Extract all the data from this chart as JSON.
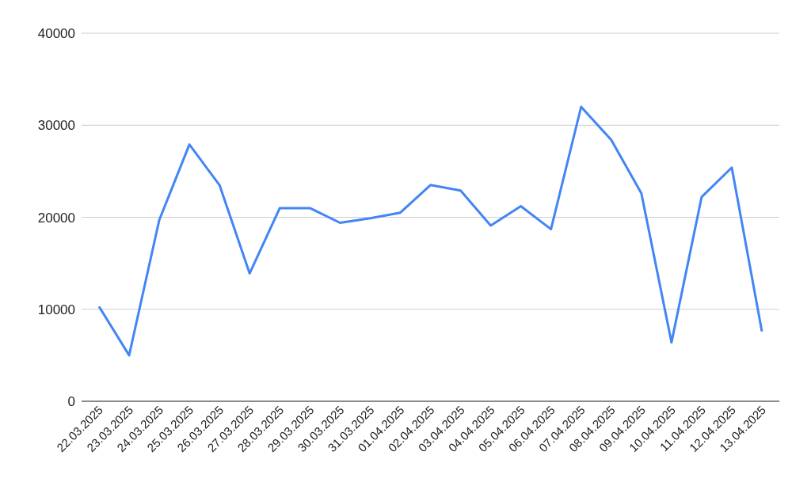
{
  "chart_data": {
    "type": "line",
    "categories": [
      "22.03.2025",
      "23.03.2025",
      "24.03.2025",
      "25.03.2025",
      "26.03.2025",
      "27.03.2025",
      "28.03.2025",
      "29.03.2025",
      "30.03.2025",
      "31.03.2025",
      "01.04.2025",
      "02.04.2025",
      "03.04.2025",
      "04.04.2025",
      "05.04.2025",
      "06.04.2025",
      "07.04.2025",
      "08.04.2025",
      "09.04.2025",
      "10.04.2025",
      "11.04.2025",
      "12.04.2025",
      "13.04.2025"
    ],
    "series": [
      {
        "color": "#4285f4",
        "values": [
          10300,
          5000,
          19700,
          27900,
          23500,
          13900,
          21000,
          21000,
          19400,
          19900,
          20500,
          23500,
          22900,
          19100,
          21200,
          18700,
          32000,
          28400,
          22600,
          6400,
          22200,
          25400,
          7600
        ]
      }
    ],
    "ylim": [
      0,
      40000
    ],
    "yticks": [
      0,
      10000,
      20000,
      30000,
      40000
    ],
    "grid": "y",
    "legend": false,
    "marker": "none",
    "line_style": "solid"
  }
}
